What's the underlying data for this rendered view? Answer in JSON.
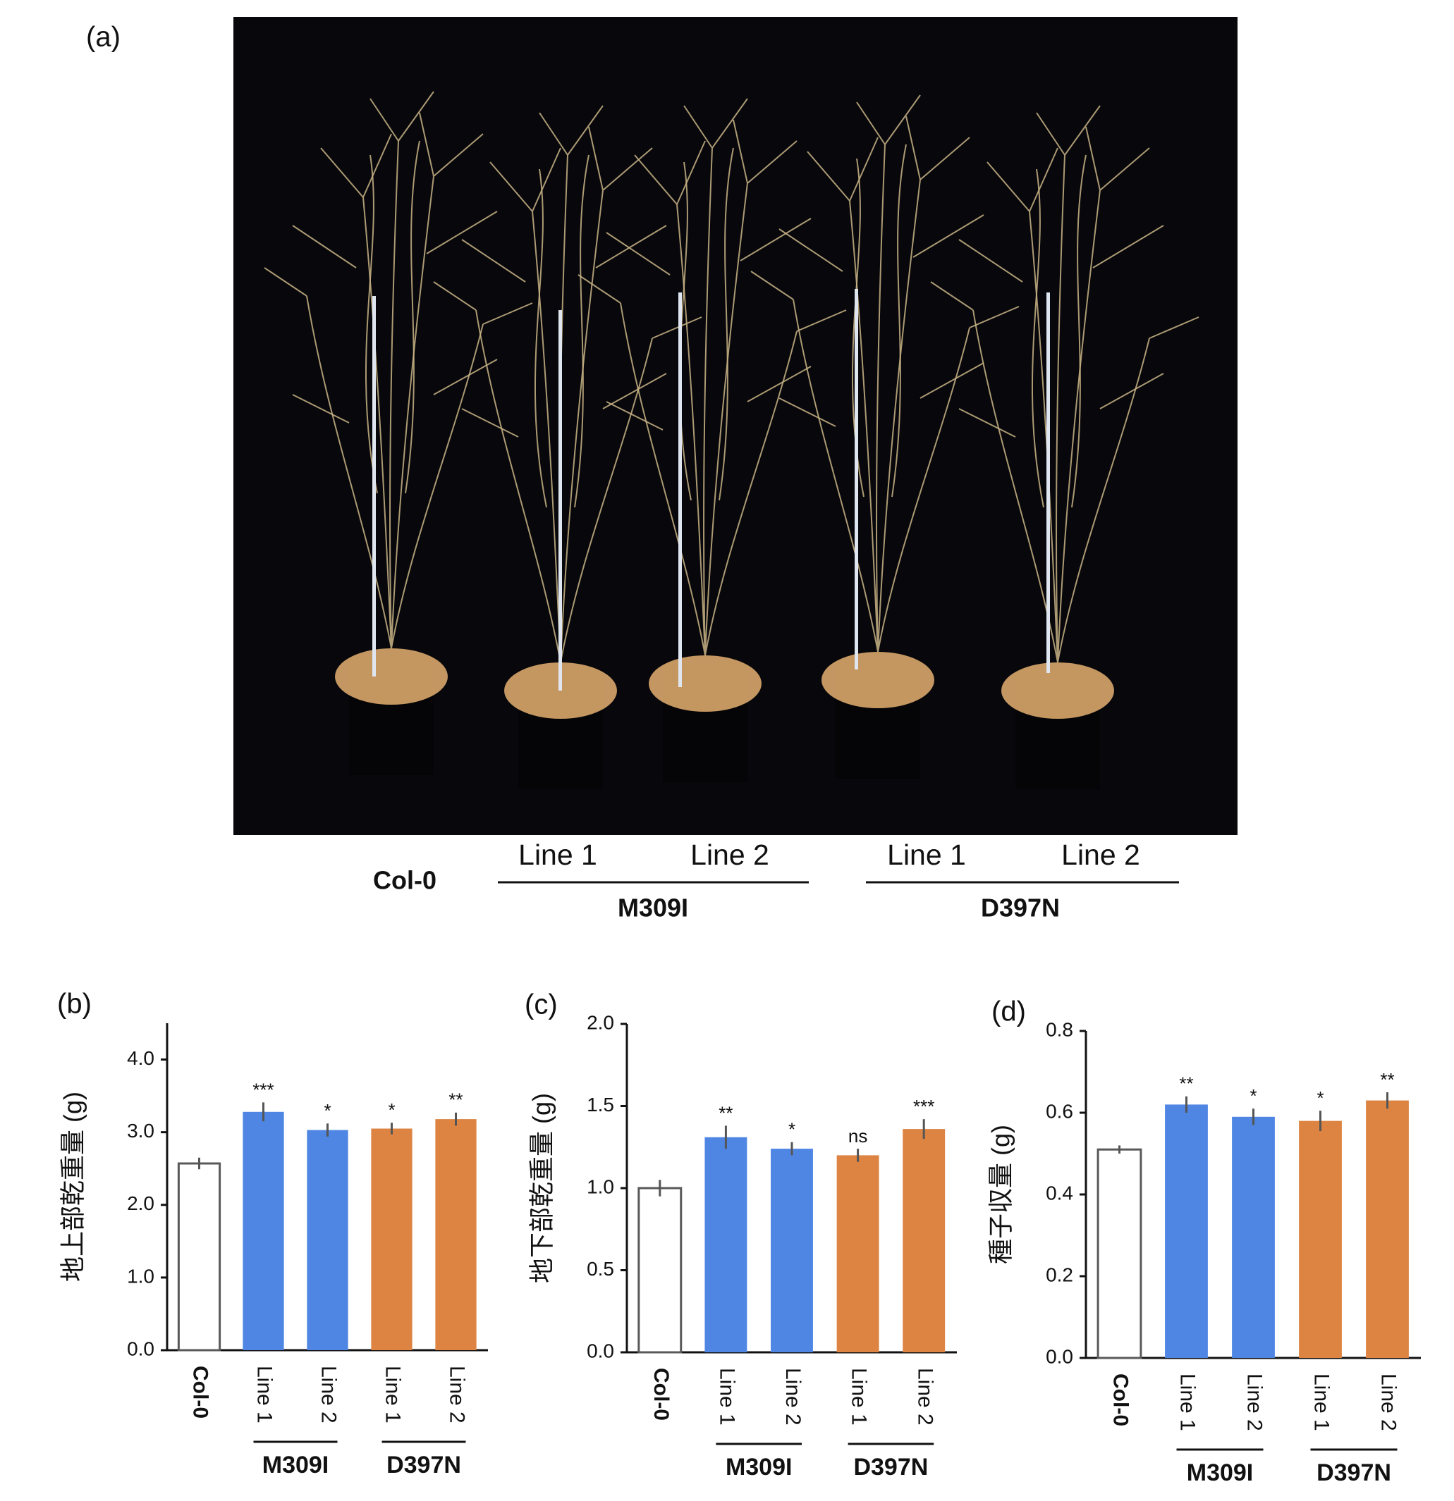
{
  "photo": {
    "label": "(a)",
    "control": "Col-0",
    "groups": [
      {
        "name": "M309I",
        "color": "#4a86e8",
        "lines": [
          "Line 1",
          "Line 2"
        ]
      },
      {
        "name": "D397N",
        "color": "#e07b39",
        "lines": [
          "Line 1",
          "Line 2"
        ]
      }
    ]
  },
  "chart_data": [
    {
      "type": "bar",
      "panel": "(b)",
      "ylabel": "地上部乾重量 (g)",
      "categories": [
        "Col-0",
        "Line 1",
        "Line 2",
        "Line 1",
        "Line 2"
      ],
      "values": [
        2.57,
        3.28,
        3.03,
        3.05,
        3.18
      ],
      "errors": [
        0.08,
        0.13,
        0.09,
        0.08,
        0.09
      ],
      "annotations": [
        null,
        "***",
        "*",
        "*",
        "**"
      ],
      "colors": [
        "#ffffff",
        "#4f86e3",
        "#4f86e3",
        "#dd8442",
        "#dd8442"
      ],
      "groups": [
        {
          "name": "M309I",
          "color": "#4a86e8"
        },
        {
          "name": "D397N",
          "color": "#e07b39"
        }
      ],
      "ylim": [
        0,
        4.5
      ],
      "yticks": [
        {
          "value": 0,
          "label": "0.0"
        },
        {
          "value": 1,
          "label": "1.0"
        },
        {
          "value": 2,
          "label": "2.0"
        },
        {
          "value": 3,
          "label": "3.0"
        },
        {
          "value": 4,
          "label": "4.0"
        }
      ]
    },
    {
      "type": "bar",
      "panel": "(c)",
      "ylabel": "地下部乾重量 (g)",
      "categories": [
        "Col-0",
        "Line 1",
        "Line 2",
        "Line 1",
        "Line 2"
      ],
      "values": [
        1.0,
        1.31,
        1.24,
        1.2,
        1.36
      ],
      "errors": [
        0.05,
        0.07,
        0.04,
        0.04,
        0.06
      ],
      "annotations": [
        null,
        "**",
        "*",
        "ns",
        "***"
      ],
      "colors": [
        "#ffffff",
        "#4f86e3",
        "#4f86e3",
        "#dd8442",
        "#dd8442"
      ],
      "groups": [
        {
          "name": "M309I",
          "color": "#4a86e8"
        },
        {
          "name": "D397N",
          "color": "#e07b39"
        }
      ],
      "ylim": [
        0,
        2.0
      ],
      "yticks": [
        {
          "value": 0,
          "label": "0.0"
        },
        0.5,
        {
          "value": 1,
          "label": "1.0"
        },
        1.5,
        {
          "value": 2,
          "label": "2.0"
        }
      ]
    },
    {
      "type": "bar",
      "panel": "(d)",
      "ylabel": "種子収量 (g)",
      "categories": [
        "Col-0",
        "Line 1",
        "Line 2",
        "Line 1",
        "Line 2"
      ],
      "values": [
        0.51,
        0.62,
        0.59,
        0.58,
        0.63
      ],
      "errors": [
        0.01,
        0.02,
        0.02,
        0.025,
        0.02
      ],
      "annotations": [
        null,
        "**",
        "*",
        "*",
        "**"
      ],
      "colors": [
        "#ffffff",
        "#4f86e3",
        "#4f86e3",
        "#dd8442",
        "#dd8442"
      ],
      "groups": [
        {
          "name": "M309I",
          "color": "#4a86e8"
        },
        {
          "name": "D397N",
          "color": "#e07b39"
        }
      ],
      "ylim": [
        0,
        0.8
      ],
      "yticks": [
        {
          "value": 0,
          "label": "0.0"
        },
        0.2,
        0.4,
        0.6,
        0.8
      ]
    }
  ]
}
